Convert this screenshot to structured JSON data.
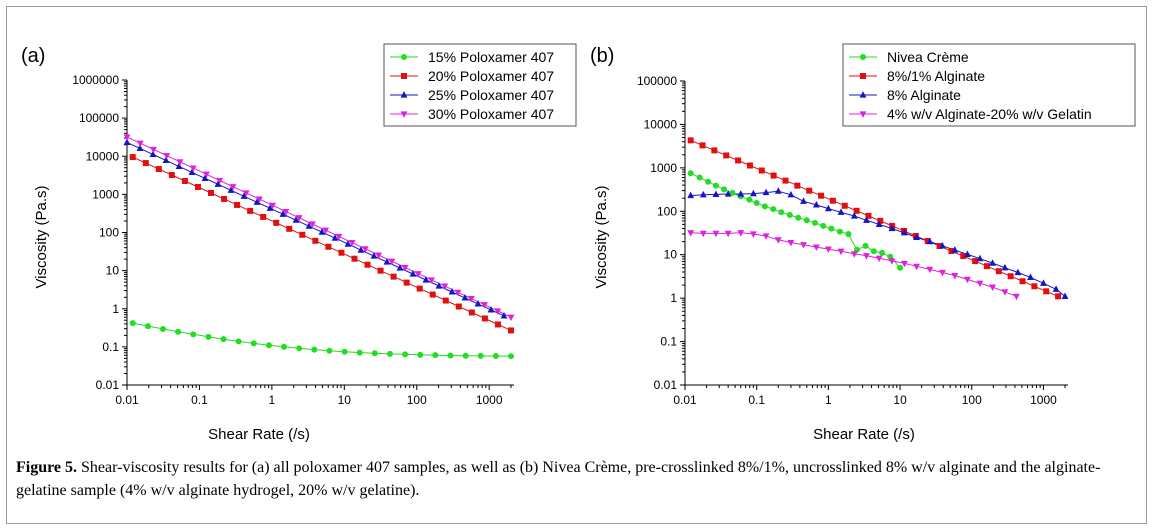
{
  "caption": {
    "label": "Figure 5.",
    "text": "Shear-viscosity results for (a) all poloxamer 407 samples, as well as (b) Nivea Crème, pre-crosslinked 8%/1%, uncrosslinked 8% w/v alginate and the alginate-gelatine sample (4% w/v alginate hydrogel, 20% w/v gelatine)."
  },
  "chart_data": [
    {
      "type": "line",
      "panel_label": "(a)",
      "xlabel": "Shear Rate (/s)",
      "ylabel": "Viscosity (Pa.s)",
      "xscale": "log",
      "yscale": "log",
      "xlim": [
        0.01,
        2200
      ],
      "ylim": [
        0.01,
        1000000
      ],
      "x_ticks": [
        0.01,
        0.1,
        1,
        10,
        100,
        1000
      ],
      "x_tick_labels": [
        "0.01",
        "0.1",
        "1",
        "10",
        "100",
        "1000"
      ],
      "y_ticks": [
        0.01,
        0.1,
        1,
        10,
        100,
        1000,
        10000,
        100000,
        1000000
      ],
      "y_tick_labels": [
        "0.01",
        "0.1",
        "1",
        "10",
        "100",
        "1000",
        "10000",
        "100000",
        "1000000"
      ],
      "grid": false,
      "legend_position": "top-right",
      "series": [
        {
          "name": "15% Poloxamer 407",
          "color": "#22dd22",
          "marker": "circle",
          "curve": "plateau",
          "x_start": 0.012,
          "x_end": 2000,
          "n": 26,
          "y_start": 0.42,
          "y_end": 0.055,
          "decay": 1.0
        },
        {
          "name": "20% Poloxamer 407",
          "color": "#e01010",
          "marker": "square",
          "curve": "power",
          "x_start": 0.012,
          "x_end": 2000,
          "n": 30,
          "y_start": 9500,
          "y_end": 0.27
        },
        {
          "name": "25% Poloxamer 407",
          "color": "#1414c8",
          "marker": "triangle-up",
          "curve": "power",
          "x_start": 0.01,
          "x_end": 1600,
          "n": 30,
          "y_start": 23000,
          "y_end": 0.65
        },
        {
          "name": "30% Poloxamer 407",
          "color": "#dd22dd",
          "marker": "triangle-down",
          "curve": "power",
          "x_start": 0.01,
          "x_end": 2000,
          "n": 30,
          "y_start": 32000,
          "y_end": 0.6
        }
      ]
    },
    {
      "type": "line",
      "panel_label": "(b)",
      "xlabel": "Shear Rate (/s)",
      "ylabel": "Viscosity (Pa.s)",
      "xscale": "log",
      "yscale": "log",
      "xlim": [
        0.01,
        2200
      ],
      "ylim": [
        0.01,
        100000
      ],
      "x_ticks": [
        0.01,
        0.1,
        1,
        10,
        100,
        1000
      ],
      "x_tick_labels": [
        "0.01",
        "0.1",
        "1",
        "10",
        "100",
        "1000"
      ],
      "y_ticks": [
        0.01,
        0.1,
        1,
        10,
        100,
        1000,
        10000,
        100000
      ],
      "y_tick_labels": [
        "0.01",
        "0.1",
        "1",
        "10",
        "100",
        "1000",
        "10000",
        "100000"
      ],
      "grid": false,
      "legend_position": "top-right",
      "series": [
        {
          "name": "Nivea Crème",
          "color": "#22dd22",
          "marker": "circle",
          "curve": "points",
          "x": [
            0.012,
            0.016,
            0.021,
            0.027,
            0.035,
            0.046,
            0.06,
            0.079,
            0.1,
            0.13,
            0.17,
            0.22,
            0.29,
            0.38,
            0.5,
            0.65,
            0.85,
            1.1,
            1.45,
            1.9,
            2.5,
            3.3,
            4.3,
            5.6,
            7.3,
            10
          ],
          "y": [
            750,
            600,
            480,
            390,
            320,
            265,
            220,
            185,
            155,
            130,
            112,
            95,
            82,
            71,
            62,
            54,
            46,
            40,
            34,
            30,
            13,
            16,
            12,
            11,
            9,
            5
          ]
        },
        {
          "name": "8%/1% Alginate",
          "color": "#e01010",
          "marker": "square",
          "curve": "power",
          "x_start": 0.012,
          "x_end": 1600,
          "n": 32,
          "y_start": 4300,
          "y_end": 1.1
        },
        {
          "name": "8% Alginate",
          "color": "#1414c8",
          "marker": "triangle-up",
          "curve": "points",
          "x": [
            0.012,
            0.018,
            0.027,
            0.04,
            0.06,
            0.09,
            0.135,
            0.2,
            0.3,
            0.45,
            0.68,
            1.0,
            1.5,
            2.3,
            3.4,
            5.1,
            7.7,
            11.5,
            17,
            26,
            39,
            58,
            87,
            130,
            195,
            290,
            440,
            660,
            1000,
            1500,
            2000
          ],
          "y": [
            230,
            240,
            245,
            250,
            250,
            255,
            270,
            290,
            240,
            170,
            140,
            115,
            95,
            78,
            62,
            50,
            40,
            32,
            25,
            20,
            16,
            12.8,
            10.2,
            8.1,
            6.4,
            5.0,
            3.9,
            3.0,
            2.2,
            1.6,
            1.1
          ]
        },
        {
          "name": "4% w/v Alginate-20% w/v Gelatin",
          "color": "#dd22dd",
          "marker": "triangle-down",
          "curve": "points",
          "x": [
            0.012,
            0.018,
            0.027,
            0.04,
            0.06,
            0.09,
            0.135,
            0.2,
            0.3,
            0.45,
            0.68,
            1.0,
            1.5,
            2.3,
            3.4,
            5.1,
            7.7,
            11.5,
            17,
            26,
            39,
            58,
            87,
            130,
            195,
            290,
            420
          ],
          "y": [
            32,
            31,
            31,
            31,
            32,
            30,
            27,
            22,
            19,
            17,
            15,
            13.5,
            12,
            10.5,
            9.5,
            8.3,
            7.2,
            6.3,
            5.4,
            4.6,
            3.9,
            3.3,
            2.7,
            2.2,
            1.8,
            1.4,
            1.1
          ]
        }
      ]
    }
  ]
}
